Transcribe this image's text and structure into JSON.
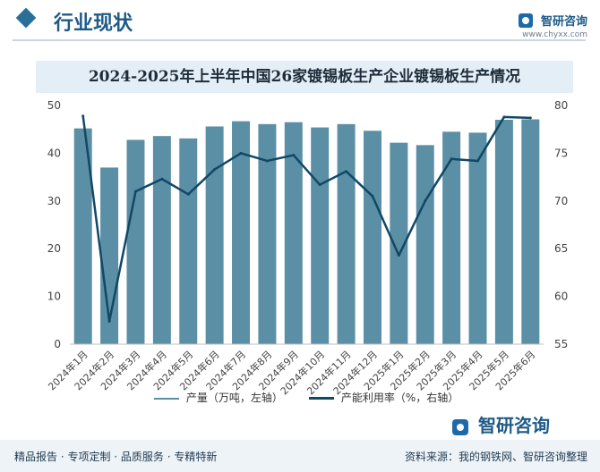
{
  "header": {
    "title": "行业现状",
    "brand_name": "智研咨询",
    "brand_url": "www.chyxx.com"
  },
  "chart_data": {
    "type": "bar",
    "title": "2024-2025年上半年中国26家镀锡板生产企业镀锡板生产情况",
    "categories": [
      "2024年1月",
      "2024年2月",
      "2024年3月",
      "2024年4月",
      "2024年5月",
      "2024年6月",
      "2024年7月",
      "2024年8月",
      "2024年9月",
      "2024年10月",
      "2024年11月",
      "2024年12月",
      "2025年1月",
      "2025年2月",
      "2025年3月",
      "2025年4月",
      "2025年5月",
      "2025年6月"
    ],
    "series": [
      {
        "name": "产量（万吨，左轴）",
        "type": "bar",
        "axis": "left",
        "color": "#5b8fa5",
        "values": [
          45.2,
          37.0,
          42.8,
          43.6,
          43.1,
          45.6,
          46.7,
          46.1,
          46.5,
          45.4,
          46.1,
          44.7,
          42.2,
          41.7,
          44.5,
          44.3,
          47.0,
          47.1
        ]
      },
      {
        "name": "产能利用率（%，右轴）",
        "type": "line",
        "axis": "right",
        "color": "#114866",
        "values": [
          78.9,
          57.4,
          71.0,
          72.3,
          70.7,
          73.3,
          75.0,
          74.2,
          74.8,
          71.7,
          73.1,
          70.5,
          64.3,
          70.0,
          74.4,
          74.2,
          78.8,
          78.7
        ]
      }
    ],
    "y_left": {
      "min": 0,
      "max": 50,
      "ticks": [
        0,
        10,
        20,
        30,
        40,
        50
      ]
    },
    "y_right": {
      "min": 55,
      "max": 80,
      "ticks": [
        55,
        60,
        65,
        70,
        75,
        80
      ]
    },
    "grid": false,
    "legend": "bottom"
  },
  "footer": {
    "logo": "智研咨询",
    "left_text": "精品报告 · 专项定制 · 品质服务 · 专精特新",
    "source": "资料来源：我的钢铁网、智研咨询整理"
  }
}
